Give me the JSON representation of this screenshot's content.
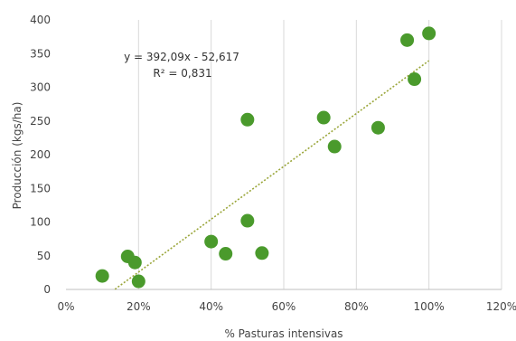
{
  "chart_data": {
    "type": "scatter",
    "title": "",
    "xlabel": "% Pasturas intensivas",
    "ylabel": "Producción (kgs/ha)",
    "xlim": [
      0,
      1.2
    ],
    "ylim": [
      0,
      400
    ],
    "x_ticks": [
      0,
      0.2,
      0.4,
      0.6,
      0.8,
      1.0,
      1.2
    ],
    "x_tick_labels": [
      "0%",
      "20%",
      "40%",
      "60%",
      "80%",
      "100%",
      "120%"
    ],
    "y_ticks": [
      0,
      50,
      100,
      150,
      200,
      250,
      300,
      350,
      400
    ],
    "y_tick_labels": [
      "0",
      "50",
      "100",
      "150",
      "200",
      "250",
      "300",
      "350",
      "400"
    ],
    "grid": "vertical",
    "marker_color": "#4a9a2c",
    "trendline_color": "#9aa63a",
    "series": [
      {
        "points": [
          {
            "x": 0.1,
            "y": 20
          },
          {
            "x": 0.17,
            "y": 49
          },
          {
            "x": 0.19,
            "y": 40
          },
          {
            "x": 0.2,
            "y": 12
          },
          {
            "x": 0.4,
            "y": 71
          },
          {
            "x": 0.44,
            "y": 53
          },
          {
            "x": 0.5,
            "y": 252
          },
          {
            "x": 0.5,
            "y": 102
          },
          {
            "x": 0.54,
            "y": 54
          },
          {
            "x": 0.71,
            "y": 255
          },
          {
            "x": 0.74,
            "y": 212
          },
          {
            "x": 0.86,
            "y": 240
          },
          {
            "x": 0.94,
            "y": 370
          },
          {
            "x": 0.96,
            "y": 312
          },
          {
            "x": 1.0,
            "y": 380
          }
        ]
      }
    ],
    "trendline": {
      "slope": 392.09,
      "intercept": -52.617,
      "x_range": [
        0.135,
        1.0
      ],
      "equation_label": "y = 392,09x - 52,617",
      "r2_label": "R² = 0,831"
    }
  }
}
